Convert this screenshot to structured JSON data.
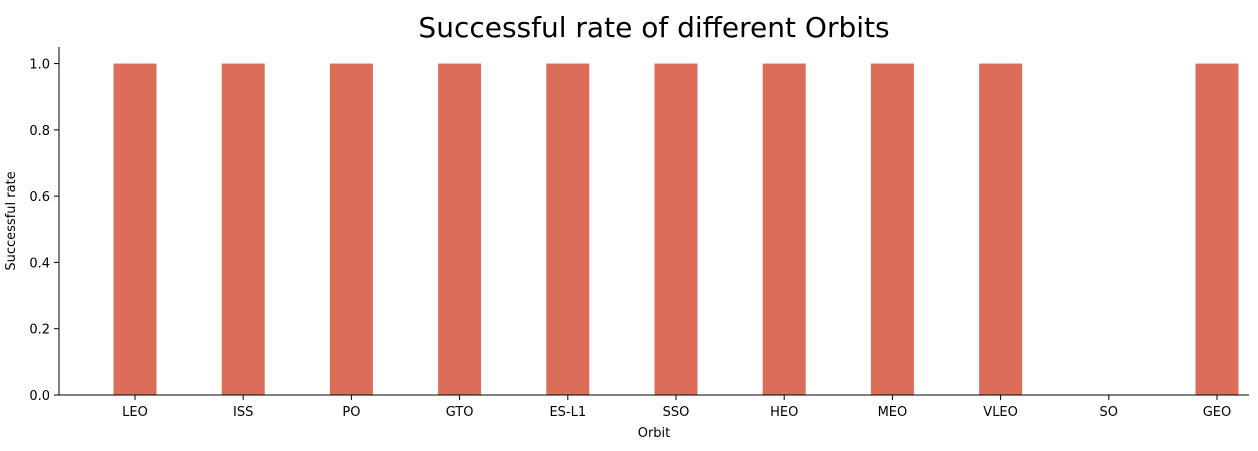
{
  "chart_data": {
    "type": "bar",
    "title": "Successful rate of different Orbits",
    "xlabel": "Orbit",
    "ylabel": "Successful rate",
    "categories": [
      "LEO",
      "ISS",
      "PO",
      "GTO",
      "ES-L1",
      "SSO",
      "HEO",
      "MEO",
      "VLEO",
      "SO",
      "GEO"
    ],
    "values": [
      1.0,
      1.0,
      1.0,
      1.0,
      1.0,
      1.0,
      1.0,
      1.0,
      1.0,
      0.0,
      1.0
    ],
    "ylim": [
      0,
      1.05
    ],
    "yticks": [
      "0.0",
      "0.2",
      "0.4",
      "0.6",
      "0.8",
      "1.0"
    ],
    "ytick_values": [
      0,
      0.2,
      0.4,
      0.6,
      0.8,
      1.0
    ],
    "bar_color": "#dc6e59",
    "grid": false,
    "legend": "none"
  }
}
